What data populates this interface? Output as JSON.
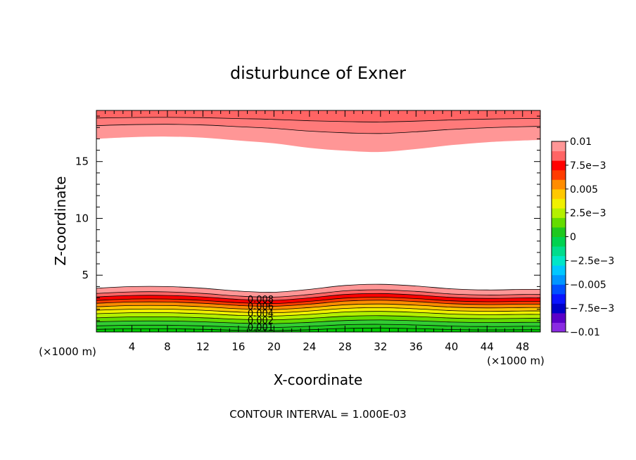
{
  "chart_data": {
    "type": "contour",
    "title": "disturbunce of Exner",
    "xlabel": "X-coordinate",
    "ylabel": "Z-coordinate",
    "x_unit_left": "(×1000 m)",
    "x_unit_right": "(×1000 m)",
    "footer": "CONTOUR INTERVAL = 1.000E-03",
    "xlim": [
      0,
      50
    ],
    "ylim": [
      0,
      19.5
    ],
    "x_ticks": [
      4,
      8,
      12,
      16,
      20,
      24,
      28,
      32,
      36,
      40,
      44,
      48
    ],
    "x_tick_labels": [
      "4",
      "8",
      "12",
      "16",
      "20",
      "24",
      "28",
      "32",
      "36",
      "40",
      "44",
      "48"
    ],
    "y_ticks": [
      5,
      10,
      15
    ],
    "y_tick_labels": [
      "5",
      "10",
      "15"
    ],
    "contour_interval": 0.001,
    "colorbar": {
      "min": -0.01,
      "max": 0.01,
      "tick_labels": [
        "0.01",
        "7.5e−3",
        "0.005",
        "2.5e−3",
        "0",
        "−2.5e−3",
        "−0.005",
        "−7.5e−3",
        "−0.01"
      ],
      "colors": [
        "#8a2be2",
        "#5a00c8",
        "#0000c8",
        "#0a14ff",
        "#0050ff",
        "#0096ff",
        "#00c8ff",
        "#00e6c8",
        "#00dc8c",
        "#00d250",
        "#1ec81e",
        "#64dc00",
        "#b4f000",
        "#f0f000",
        "#ffc800",
        "#ff8c00",
        "#ff3c00",
        "#ff0000",
        "#ff6464",
        "#ff9696"
      ]
    },
    "contour_labels": [
      "0.008",
      "0.006",
      "0.004",
      "0.002",
      "0.001"
    ],
    "bottom_bands": {
      "x": [
        0,
        4,
        8,
        12,
        16,
        20,
        24,
        28,
        32,
        36,
        40,
        44,
        48,
        50
      ],
      "hump": [
        0.1,
        0.25,
        0.25,
        0.1,
        -0.15,
        -0.25,
        0.0,
        0.35,
        0.45,
        0.3,
        0.05,
        -0.05,
        0.0,
        0.0
      ],
      "levels": [
        {
          "base": 3.75,
          "color": "#ff9696"
        },
        {
          "base": 3.3,
          "color": "#ff6464"
        },
        {
          "base": 3.0,
          "color": "#ff0000"
        },
        {
          "base": 2.7,
          "color": "#ff3c00"
        },
        {
          "base": 2.45,
          "color": "#ff8c00"
        },
        {
          "base": 2.15,
          "color": "#ffc800"
        },
        {
          "base": 1.85,
          "color": "#f0f000"
        },
        {
          "base": 1.55,
          "color": "#b4f000"
        },
        {
          "base": 1.2,
          "color": "#64dc00"
        },
        {
          "base": 0.85,
          "color": "#32cd32"
        },
        {
          "base": 0.5,
          "color": "#1ec81e"
        },
        {
          "base": 0.2,
          "color": "#00c800"
        }
      ]
    },
    "top_bands": {
      "x": [
        0,
        4,
        8,
        12,
        16,
        20,
        24,
        28,
        32,
        36,
        40,
        44,
        48,
        50
      ],
      "dip": [
        0.1,
        0.25,
        0.3,
        0.2,
        -0.05,
        -0.3,
        -0.7,
        -0.95,
        -1.05,
        -0.8,
        -0.45,
        -0.2,
        -0.05,
        0.0
      ],
      "levels": [
        {
          "base": 16.9,
          "color": "#ff9696"
        },
        {
          "base": 18.1,
          "color": "#ff7a7a"
        },
        {
          "base": 18.8,
          "color": "#ff6464"
        }
      ]
    }
  }
}
